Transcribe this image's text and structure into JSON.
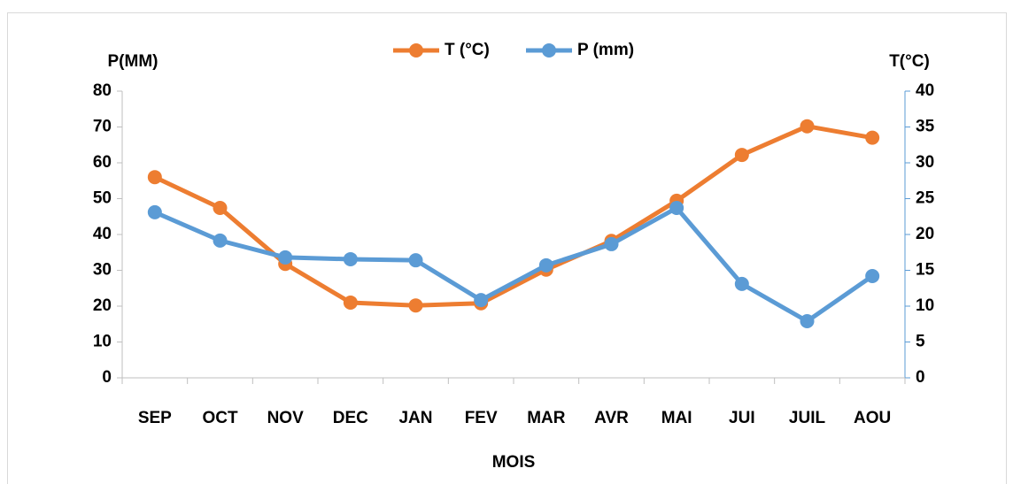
{
  "chart_data": {
    "type": "line",
    "x_label": "MOIS",
    "y_label": "P(MM)",
    "y2_label": "T(°C)",
    "categories": [
      "SEP",
      "OCT",
      "NOV",
      "DEC",
      "JAN",
      "FEV",
      "MAR",
      "AVR",
      "MAI",
      "JUI",
      "JUIL",
      "AOU"
    ],
    "series": [
      {
        "name": "T (°C)",
        "color": "#ed7d31",
        "axis": "y2",
        "values": [
          28,
          23.7,
          15.9,
          10.5,
          10.1,
          10.4,
          15.1,
          19.1,
          24.7,
          31.1,
          35.1,
          33.5
        ]
      },
      {
        "name": "P (mm)",
        "color": "#5b9bd5",
        "values": [
          46.2,
          38.3,
          33.6,
          33.1,
          32.8,
          21.7,
          31.4,
          37.3,
          47.4,
          26.2,
          15.8,
          28.4
        ]
      }
    ],
    "ylim": [
      0,
      80
    ],
    "yticks": [
      0,
      10,
      20,
      30,
      40,
      50,
      60,
      70,
      80
    ],
    "y2lim": [
      0,
      40
    ],
    "y2ticks": [
      0,
      5,
      10,
      15,
      20,
      25,
      30,
      35,
      40
    ],
    "legend": "top"
  }
}
